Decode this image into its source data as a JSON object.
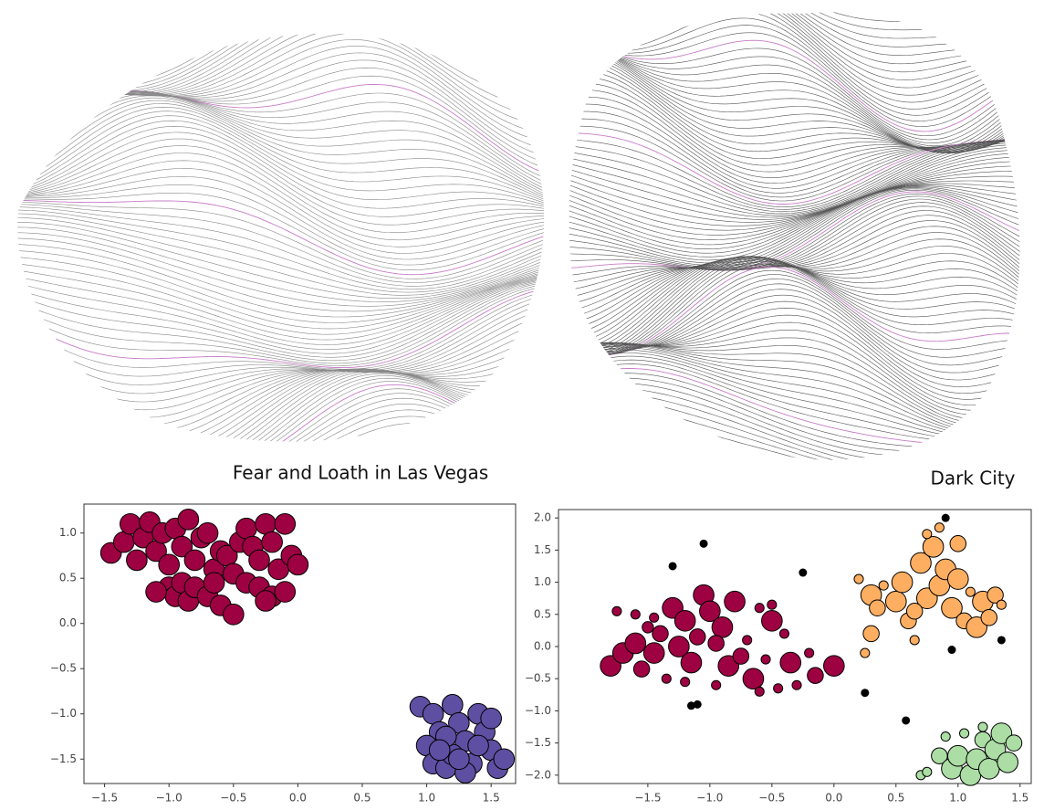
{
  "chart_data": [
    {
      "type": "scatter",
      "title": "Fear and Loath in Las Vegas",
      "xlim": [
        -1.66,
        1.69
      ],
      "ylim": [
        -1.77,
        1.32
      ],
      "xticks": [
        {
          "value": -1.5,
          "label": "−1.5"
        },
        {
          "value": -1.0,
          "label": "−1.0"
        },
        {
          "value": -0.5,
          "label": "−0.5"
        },
        {
          "value": 0.0,
          "label": "0.0"
        },
        {
          "value": 0.5,
          "label": "0.5"
        },
        {
          "value": 1.0,
          "label": "1.0"
        },
        {
          "value": 1.5,
          "label": "1.5"
        }
      ],
      "yticks": [
        {
          "value": 1.0,
          "label": "1.0"
        },
        {
          "value": 0.5,
          "label": "0.5"
        },
        {
          "value": 0.0,
          "label": "0.0"
        },
        {
          "value": -0.5,
          "label": "−0.5"
        },
        {
          "value": -1.0,
          "label": "−1.0"
        },
        {
          "value": -1.5,
          "label": "−1.5"
        }
      ],
      "series": [
        {
          "color": "#9e0142",
          "size": 200,
          "x": [
            -1.45,
            -1.35,
            -1.3,
            -1.25,
            -1.2,
            -1.15,
            -1.1,
            -1.05,
            -1.0,
            -0.95,
            -0.9,
            -0.85,
            -0.8,
            -0.75,
            -0.7,
            -0.65,
            -0.6,
            -0.55,
            -0.5,
            -0.45,
            -0.4,
            -0.35,
            -0.3,
            -0.25,
            -0.2,
            -0.15,
            -0.1,
            -0.05,
            0.0,
            -1.0,
            -0.95,
            -0.9,
            -0.85,
            -0.8,
            -0.7,
            -0.6,
            -0.5,
            -0.4,
            -0.3,
            -0.2,
            -0.1,
            -0.25,
            -1.1,
            -0.65
          ],
          "values": [
            0.78,
            0.9,
            1.1,
            0.7,
            0.95,
            1.12,
            0.8,
            1.0,
            0.65,
            1.05,
            0.85,
            1.15,
            0.7,
            0.95,
            1.0,
            0.6,
            0.8,
            0.75,
            0.55,
            0.9,
            1.05,
            0.85,
            0.7,
            1.1,
            0.9,
            0.6,
            1.1,
            0.75,
            0.65,
            0.4,
            0.3,
            0.45,
            0.25,
            0.4,
            0.3,
            0.2,
            0.1,
            0.45,
            0.4,
            0.3,
            0.35,
            0.25,
            0.35,
            0.45
          ]
        },
        {
          "color": "#5e4fa2",
          "size": 200,
          "x": [
            0.95,
            1.05,
            1.1,
            1.0,
            1.05,
            1.15,
            1.2,
            1.25,
            1.3,
            1.2,
            1.35,
            1.4,
            1.45,
            1.5,
            1.55,
            1.6,
            1.3,
            1.4,
            1.15,
            1.5,
            1.1,
            1.25
          ],
          "values": [
            -0.92,
            -1.0,
            -1.2,
            -1.35,
            -1.55,
            -1.6,
            -0.9,
            -1.1,
            -1.3,
            -1.45,
            -1.55,
            -1.0,
            -1.2,
            -1.4,
            -1.6,
            -1.5,
            -1.65,
            -1.35,
            -1.25,
            -1.05,
            -1.4,
            -1.5
          ]
        }
      ]
    },
    {
      "type": "scatter",
      "title": "Dark City",
      "xlim": [
        -2.22,
        1.59
      ],
      "ylim": [
        -2.13,
        2.13
      ],
      "xticks": [
        {
          "value": -1.5,
          "label": "−1.5"
        },
        {
          "value": -1.0,
          "label": "−1.0"
        },
        {
          "value": -0.5,
          "label": "−0.5"
        },
        {
          "value": 0.0,
          "label": "0.0"
        },
        {
          "value": 0.5,
          "label": "0.5"
        },
        {
          "value": 1.0,
          "label": "1.0"
        },
        {
          "value": 1.5,
          "label": "1.5"
        }
      ],
      "yticks": [
        {
          "value": 2.0,
          "label": "2.0"
        },
        {
          "value": 1.5,
          "label": "1.5"
        },
        {
          "value": 1.0,
          "label": "1.0"
        },
        {
          "value": 0.5,
          "label": "0.5"
        },
        {
          "value": 0.0,
          "label": "0.0"
        },
        {
          "value": -0.5,
          "label": "−0.5"
        },
        {
          "value": -1.0,
          "label": "−1.0"
        },
        {
          "value": -1.5,
          "label": "−1.5"
        },
        {
          "value": -2.0,
          "label": "−2.0"
        }
      ],
      "series": [
        {
          "color": "#9e0142",
          "x": [
            -1.8,
            -1.7,
            -1.6,
            -1.55,
            -1.5,
            -1.45,
            -1.4,
            -1.35,
            -1.3,
            -1.25,
            -1.2,
            -1.15,
            -1.1,
            -1.05,
            -1.0,
            -0.95,
            -0.9,
            -0.85,
            -0.8,
            -0.75,
            -0.7,
            -0.65,
            -0.6,
            -0.55,
            -0.5,
            -0.45,
            -0.4,
            -0.35,
            -0.3,
            -0.2,
            -0.15,
            0.0,
            -1.6,
            -1.75,
            -1.45,
            -1.2,
            -0.5,
            -0.95,
            -0.6
          ],
          "values": [
            -0.3,
            -0.1,
            0.05,
            -0.35,
            0.3,
            -0.1,
            0.2,
            -0.5,
            0.6,
            0.0,
            0.4,
            -0.25,
            0.15,
            0.8,
            0.55,
            -0.6,
            0.3,
            -0.3,
            0.7,
            -0.15,
            0.1,
            -0.5,
            0.6,
            -0.2,
            0.4,
            -0.65,
            0.2,
            -0.25,
            -0.6,
            -0.1,
            -0.45,
            -0.3,
            0.5,
            0.55,
            0.45,
            -0.55,
            0.65,
            0.05,
            -0.7
          ],
          "sizes": [
            200,
            200,
            200,
            120,
            60,
            200,
            120,
            40,
            200,
            200,
            200,
            200,
            120,
            200,
            200,
            40,
            200,
            200,
            200,
            120,
            40,
            200,
            40,
            40,
            200,
            40,
            40,
            200,
            40,
            40,
            120,
            200,
            40,
            40,
            40,
            40,
            40,
            120,
            40
          ]
        },
        {
          "color": "#fdae61",
          "x": [
            0.2,
            0.3,
            0.35,
            0.3,
            0.25,
            0.4,
            0.5,
            0.55,
            0.6,
            0.65,
            0.7,
            0.75,
            0.8,
            0.85,
            0.9,
            0.95,
            1.0,
            1.05,
            1.1,
            1.15,
            1.2,
            1.25,
            1.3,
            1.35,
            0.85,
            0.75,
            1.0,
            0.65
          ],
          "values": [
            1.05,
            0.8,
            0.6,
            0.2,
            -0.1,
            0.95,
            0.7,
            1.0,
            0.4,
            0.1,
            1.3,
            0.75,
            1.55,
            0.95,
            1.2,
            0.6,
            1.05,
            0.4,
            0.85,
            0.3,
            0.7,
            0.45,
            0.8,
            0.65,
            1.85,
            1.75,
            1.6,
            0.55
          ],
          "sizes": [
            40,
            200,
            120,
            120,
            40,
            40,
            200,
            200,
            120,
            40,
            200,
            200,
            200,
            200,
            200,
            200,
            200,
            120,
            40,
            200,
            200,
            120,
            120,
            40,
            40,
            40,
            120,
            120
          ]
        },
        {
          "color": "#abdda4",
          "x": [
            0.7,
            0.75,
            0.85,
            0.9,
            0.95,
            1.0,
            1.05,
            1.1,
            1.15,
            1.2,
            1.25,
            1.3,
            1.35,
            1.4,
            1.45,
            1.2
          ],
          "values": [
            -2.0,
            -1.95,
            -1.7,
            -1.4,
            -1.9,
            -1.7,
            -1.35,
            -2.0,
            -1.75,
            -1.45,
            -1.9,
            -1.6,
            -1.35,
            -1.8,
            -1.5,
            -1.25
          ],
          "sizes": [
            40,
            40,
            120,
            40,
            200,
            200,
            40,
            200,
            200,
            120,
            200,
            200,
            200,
            200,
            120,
            40
          ]
        },
        {
          "color": "#000000",
          "size": 25,
          "x": [
            -1.3,
            -1.05,
            -1.1,
            -1.15,
            -0.25,
            0.9,
            1.35,
            0.95,
            0.25,
            0.58
          ],
          "values": [
            1.25,
            1.6,
            -0.9,
            -0.92,
            1.15,
            2.0,
            0.1,
            -0.05,
            -0.72,
            -1.15
          ]
        }
      ]
    }
  ]
}
